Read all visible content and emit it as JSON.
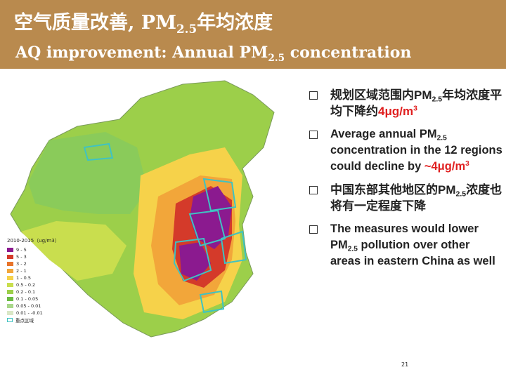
{
  "header": {
    "title_zh_prefix": "空气质量改善, PM",
    "title_zh_sub": "2.5",
    "title_zh_suffix": "年均浓度",
    "title_en_prefix": "AQ improvement: Annual PM",
    "title_en_sub": "2.5",
    "title_en_suffix": " concentration",
    "background_color": "#B98A4E"
  },
  "legend": {
    "title": "2010-2015（ug/m3）",
    "items": [
      {
        "label": "9 - 5",
        "color": "#8B1A8F"
      },
      {
        "label": "5 - 3",
        "color": "#D43A2A"
      },
      {
        "label": "3 - 2",
        "color": "#E8742A"
      },
      {
        "label": "2 - 1",
        "color": "#F2A63A"
      },
      {
        "label": "1 - 0.5",
        "color": "#F6D24A"
      },
      {
        "label": "0.5 - 0.2",
        "color": "#C9DE4E"
      },
      {
        "label": "0.2 - 0.1",
        "color": "#9CCF4A"
      },
      {
        "label": "0.1 - 0.05",
        "color": "#6CBB45"
      },
      {
        "label": "0.05 - 0.01",
        "color": "#A8D78A"
      },
      {
        "label": "0.01 - -0.01",
        "color": "#D9E7C6"
      },
      {
        "label": "重点区域",
        "color": "#3FC3C2",
        "outline": true
      }
    ]
  },
  "bullets": [
    {
      "type": "zh",
      "text1": "规划区域范围内PM",
      "sub": "2.5",
      "text2": "年均浓度平均下降约",
      "highlight": "4μg/m",
      "sup": "3"
    },
    {
      "type": "en",
      "text1": "Average annual PM",
      "sub": "2.5",
      "text2": " concentration in the 12 regions could decline by ",
      "highlight": "~4μg/m",
      "sup": "3"
    },
    {
      "type": "zh",
      "text1": "中国东部其他地区的PM",
      "sub": "2.5",
      "text2": "浓度也将有一定程度下降"
    },
    {
      "type": "en",
      "text1": "The measures would lower PM",
      "sub": "2.5",
      "text2": " pollution over other areas in eastern China as well"
    }
  ],
  "page_number": "21",
  "colors": {
    "highlight_red": "#E02020",
    "region_outline": "#3FC3C2"
  }
}
